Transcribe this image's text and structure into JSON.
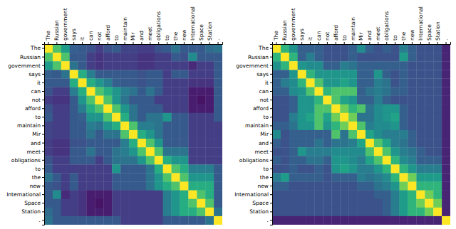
{
  "chart_data": [
    {
      "type": "heatmap",
      "categories": [
        "The",
        "Russian",
        "government",
        "says",
        "it",
        "can",
        "not",
        "afford",
        "to",
        "maintain",
        "Mir",
        "and",
        "meet",
        "obligations",
        "to",
        "the",
        "new",
        "International",
        "Space",
        "Station",
        "."
      ],
      "color": "viridis",
      "zlim": [
        0.0,
        1.0
      ],
      "values": [
        [
          1.0,
          0.72,
          0.55,
          0.3,
          0.28,
          0.25,
          0.18,
          0.25,
          0.28,
          0.2,
          0.2,
          0.18,
          0.18,
          0.25,
          0.28,
          0.38,
          0.28,
          0.28,
          0.28,
          0.35,
          0.38
        ],
        [
          0.72,
          1.0,
          0.72,
          0.28,
          0.28,
          0.18,
          0.15,
          0.18,
          0.18,
          0.18,
          0.18,
          0.15,
          0.15,
          0.18,
          0.18,
          0.28,
          0.25,
          0.48,
          0.28,
          0.28,
          0.28
        ],
        [
          0.55,
          0.72,
          1.0,
          0.38,
          0.28,
          0.18,
          0.15,
          0.18,
          0.18,
          0.18,
          0.18,
          0.15,
          0.15,
          0.18,
          0.18,
          0.18,
          0.18,
          0.12,
          0.18,
          0.18,
          0.28
        ],
        [
          0.3,
          0.28,
          0.38,
          1.0,
          0.62,
          0.42,
          0.28,
          0.28,
          0.28,
          0.28,
          0.28,
          0.25,
          0.28,
          0.28,
          0.18,
          0.28,
          0.28,
          0.18,
          0.18,
          0.18,
          0.28
        ],
        [
          0.28,
          0.28,
          0.28,
          0.62,
          1.0,
          0.62,
          0.52,
          0.42,
          0.3,
          0.28,
          0.28,
          0.25,
          0.28,
          0.28,
          0.18,
          0.18,
          0.18,
          0.15,
          0.15,
          0.15,
          0.28
        ],
        [
          0.25,
          0.18,
          0.18,
          0.42,
          0.62,
          1.0,
          0.72,
          0.62,
          0.52,
          0.42,
          0.38,
          0.28,
          0.38,
          0.28,
          0.18,
          0.18,
          0.18,
          0.08,
          0.08,
          0.08,
          0.28
        ],
        [
          0.18,
          0.15,
          0.15,
          0.28,
          0.52,
          0.72,
          1.0,
          0.72,
          0.52,
          0.38,
          0.28,
          0.28,
          0.28,
          0.18,
          0.18,
          0.18,
          0.18,
          0.08,
          0.05,
          0.08,
          0.28
        ],
        [
          0.25,
          0.18,
          0.18,
          0.28,
          0.42,
          0.62,
          0.72,
          1.0,
          0.72,
          0.52,
          0.38,
          0.28,
          0.28,
          0.28,
          0.18,
          0.18,
          0.18,
          0.08,
          0.08,
          0.08,
          0.28
        ],
        [
          0.28,
          0.18,
          0.18,
          0.28,
          0.3,
          0.52,
          0.52,
          0.72,
          1.0,
          0.62,
          0.38,
          0.28,
          0.38,
          0.38,
          0.52,
          0.28,
          0.28,
          0.18,
          0.18,
          0.18,
          0.28
        ],
        [
          0.2,
          0.18,
          0.18,
          0.28,
          0.28,
          0.42,
          0.38,
          0.52,
          0.62,
          1.0,
          0.72,
          0.42,
          0.42,
          0.38,
          0.28,
          0.28,
          0.28,
          0.18,
          0.18,
          0.18,
          0.18
        ],
        [
          0.2,
          0.18,
          0.18,
          0.28,
          0.28,
          0.38,
          0.28,
          0.38,
          0.38,
          0.72,
          1.0,
          0.62,
          0.52,
          0.38,
          0.28,
          0.28,
          0.28,
          0.18,
          0.18,
          0.18,
          0.18
        ],
        [
          0.18,
          0.15,
          0.15,
          0.25,
          0.25,
          0.28,
          0.28,
          0.28,
          0.28,
          0.42,
          0.62,
          1.0,
          0.72,
          0.52,
          0.28,
          0.28,
          0.28,
          0.18,
          0.18,
          0.18,
          0.18
        ],
        [
          0.18,
          0.15,
          0.15,
          0.28,
          0.28,
          0.38,
          0.28,
          0.28,
          0.38,
          0.42,
          0.52,
          0.72,
          1.0,
          0.72,
          0.38,
          0.38,
          0.38,
          0.18,
          0.18,
          0.18,
          0.18
        ],
        [
          0.25,
          0.18,
          0.18,
          0.28,
          0.28,
          0.28,
          0.18,
          0.28,
          0.38,
          0.38,
          0.38,
          0.52,
          0.72,
          1.0,
          0.62,
          0.52,
          0.52,
          0.18,
          0.18,
          0.18,
          0.18
        ],
        [
          0.28,
          0.18,
          0.18,
          0.18,
          0.18,
          0.18,
          0.18,
          0.18,
          0.52,
          0.28,
          0.28,
          0.28,
          0.38,
          0.62,
          1.0,
          0.72,
          0.62,
          0.42,
          0.42,
          0.42,
          0.28
        ],
        [
          0.38,
          0.28,
          0.18,
          0.28,
          0.18,
          0.18,
          0.18,
          0.18,
          0.28,
          0.28,
          0.28,
          0.28,
          0.38,
          0.52,
          0.72,
          1.0,
          0.72,
          0.52,
          0.52,
          0.52,
          0.28
        ],
        [
          0.28,
          0.25,
          0.18,
          0.28,
          0.18,
          0.18,
          0.18,
          0.18,
          0.28,
          0.28,
          0.28,
          0.28,
          0.38,
          0.52,
          0.62,
          0.72,
          1.0,
          0.62,
          0.62,
          0.62,
          0.28
        ],
        [
          0.28,
          0.48,
          0.12,
          0.18,
          0.15,
          0.08,
          0.08,
          0.08,
          0.18,
          0.18,
          0.18,
          0.18,
          0.18,
          0.18,
          0.42,
          0.52,
          0.62,
          1.0,
          0.72,
          0.62,
          0.28
        ],
        [
          0.28,
          0.28,
          0.18,
          0.18,
          0.15,
          0.08,
          0.05,
          0.08,
          0.18,
          0.18,
          0.18,
          0.18,
          0.18,
          0.18,
          0.42,
          0.52,
          0.62,
          0.72,
          1.0,
          0.72,
          0.28
        ],
        [
          0.35,
          0.28,
          0.18,
          0.18,
          0.15,
          0.08,
          0.08,
          0.08,
          0.18,
          0.18,
          0.18,
          0.18,
          0.18,
          0.18,
          0.42,
          0.52,
          0.62,
          0.62,
          0.72,
          1.0,
          0.38
        ],
        [
          0.38,
          0.28,
          0.28,
          0.28,
          0.28,
          0.28,
          0.28,
          0.28,
          0.28,
          0.18,
          0.18,
          0.18,
          0.18,
          0.18,
          0.28,
          0.28,
          0.28,
          0.28,
          0.28,
          0.38,
          1.0
        ]
      ]
    },
    {
      "type": "heatmap",
      "categories": [
        "The",
        "Russian",
        "government",
        "says",
        "it",
        "can",
        "not",
        "afford",
        "to",
        "maintain",
        "Mir",
        "and",
        "meet",
        "obligations",
        "to",
        "the",
        "new",
        "International",
        "Space",
        "Station",
        "."
      ],
      "color": "viridis",
      "zlim": [
        0.0,
        1.0
      ],
      "values": [
        [
          1.0,
          0.65,
          0.5,
          0.3,
          0.3,
          0.3,
          0.25,
          0.25,
          0.25,
          0.3,
          0.48,
          0.3,
          0.25,
          0.3,
          0.25,
          0.42,
          0.3,
          0.25,
          0.25,
          0.25,
          0.1
        ],
        [
          0.65,
          1.0,
          0.65,
          0.3,
          0.42,
          0.3,
          0.25,
          0.25,
          0.25,
          0.3,
          0.25,
          0.25,
          0.25,
          0.25,
          0.25,
          0.55,
          0.3,
          0.25,
          0.25,
          0.25,
          0.1
        ],
        [
          0.5,
          0.65,
          1.0,
          0.52,
          0.48,
          0.48,
          0.3,
          0.3,
          0.42,
          0.38,
          0.3,
          0.3,
          0.3,
          0.3,
          0.3,
          0.3,
          0.25,
          0.25,
          0.25,
          0.25,
          0.1
        ],
        [
          0.3,
          0.3,
          0.52,
          1.0,
          0.65,
          0.52,
          0.52,
          0.52,
          0.52,
          0.52,
          0.3,
          0.3,
          0.52,
          0.3,
          0.25,
          0.3,
          0.25,
          0.25,
          0.25,
          0.25,
          0.1
        ],
        [
          0.3,
          0.42,
          0.48,
          0.65,
          1.0,
          0.72,
          0.52,
          0.52,
          0.58,
          0.52,
          0.3,
          0.3,
          0.42,
          0.38,
          0.25,
          0.3,
          0.25,
          0.25,
          0.25,
          0.25,
          0.1
        ],
        [
          0.3,
          0.3,
          0.48,
          0.52,
          0.72,
          1.0,
          0.65,
          0.72,
          0.72,
          0.72,
          0.3,
          0.38,
          0.42,
          0.38,
          0.3,
          0.3,
          0.25,
          0.25,
          0.25,
          0.25,
          0.1
        ],
        [
          0.25,
          0.25,
          0.3,
          0.52,
          0.52,
          0.65,
          1.0,
          0.72,
          0.58,
          0.52,
          0.3,
          0.3,
          0.42,
          0.3,
          0.25,
          0.25,
          0.25,
          0.25,
          0.25,
          0.25,
          0.1
        ],
        [
          0.25,
          0.25,
          0.3,
          0.52,
          0.52,
          0.72,
          0.72,
          1.0,
          0.78,
          0.65,
          0.72,
          0.38,
          0.48,
          0.52,
          0.52,
          0.3,
          0.25,
          0.25,
          0.25,
          0.25,
          0.1
        ],
        [
          0.25,
          0.25,
          0.42,
          0.52,
          0.58,
          0.72,
          0.58,
          0.78,
          1.0,
          0.78,
          0.38,
          0.38,
          0.48,
          0.52,
          0.58,
          0.3,
          0.25,
          0.25,
          0.25,
          0.25,
          0.1
        ],
        [
          0.3,
          0.3,
          0.38,
          0.52,
          0.52,
          0.72,
          0.52,
          0.65,
          0.78,
          1.0,
          0.72,
          0.42,
          0.48,
          0.48,
          0.52,
          0.3,
          0.25,
          0.25,
          0.25,
          0.25,
          0.1
        ],
        [
          0.48,
          0.25,
          0.3,
          0.3,
          0.3,
          0.3,
          0.3,
          0.72,
          0.38,
          0.72,
          1.0,
          0.58,
          0.48,
          0.42,
          0.42,
          0.42,
          0.3,
          0.25,
          0.25,
          0.25,
          0.1
        ],
        [
          0.3,
          0.25,
          0.3,
          0.3,
          0.3,
          0.38,
          0.3,
          0.38,
          0.38,
          0.42,
          0.58,
          1.0,
          0.72,
          0.58,
          0.42,
          0.38,
          0.3,
          0.25,
          0.25,
          0.25,
          0.1
        ],
        [
          0.25,
          0.25,
          0.3,
          0.52,
          0.42,
          0.42,
          0.42,
          0.48,
          0.48,
          0.48,
          0.48,
          0.72,
          1.0,
          0.72,
          0.52,
          0.42,
          0.38,
          0.3,
          0.25,
          0.25,
          0.1
        ],
        [
          0.3,
          0.25,
          0.3,
          0.3,
          0.38,
          0.38,
          0.3,
          0.52,
          0.52,
          0.48,
          0.42,
          0.58,
          0.72,
          1.0,
          0.65,
          0.48,
          0.42,
          0.3,
          0.3,
          0.3,
          0.1
        ],
        [
          0.25,
          0.25,
          0.3,
          0.25,
          0.25,
          0.3,
          0.25,
          0.52,
          0.58,
          0.52,
          0.42,
          0.42,
          0.52,
          0.65,
          1.0,
          0.65,
          0.52,
          0.42,
          0.42,
          0.42,
          0.1
        ],
        [
          0.42,
          0.55,
          0.3,
          0.3,
          0.3,
          0.3,
          0.25,
          0.3,
          0.3,
          0.3,
          0.42,
          0.38,
          0.42,
          0.48,
          0.65,
          1.0,
          0.78,
          0.55,
          0.55,
          0.55,
          0.1
        ],
        [
          0.3,
          0.3,
          0.25,
          0.25,
          0.25,
          0.25,
          0.25,
          0.25,
          0.25,
          0.25,
          0.3,
          0.3,
          0.38,
          0.42,
          0.52,
          0.78,
          1.0,
          0.65,
          0.65,
          0.65,
          0.1
        ],
        [
          0.25,
          0.25,
          0.25,
          0.25,
          0.25,
          0.25,
          0.25,
          0.25,
          0.25,
          0.25,
          0.25,
          0.25,
          0.3,
          0.3,
          0.42,
          0.55,
          0.65,
          1.0,
          0.78,
          0.65,
          0.1
        ],
        [
          0.25,
          0.25,
          0.25,
          0.25,
          0.25,
          0.25,
          0.25,
          0.25,
          0.25,
          0.25,
          0.25,
          0.25,
          0.25,
          0.3,
          0.42,
          0.55,
          0.65,
          0.78,
          1.0,
          0.78,
          0.1
        ],
        [
          0.25,
          0.25,
          0.25,
          0.25,
          0.25,
          0.25,
          0.25,
          0.25,
          0.25,
          0.25,
          0.25,
          0.25,
          0.25,
          0.3,
          0.42,
          0.55,
          0.65,
          0.65,
          0.78,
          1.0,
          0.1
        ],
        [
          0.1,
          0.1,
          0.1,
          0.1,
          0.1,
          0.1,
          0.1,
          0.1,
          0.1,
          0.1,
          0.1,
          0.1,
          0.1,
          0.1,
          0.1,
          0.1,
          0.1,
          0.1,
          0.1,
          0.1,
          1.0
        ]
      ]
    }
  ]
}
